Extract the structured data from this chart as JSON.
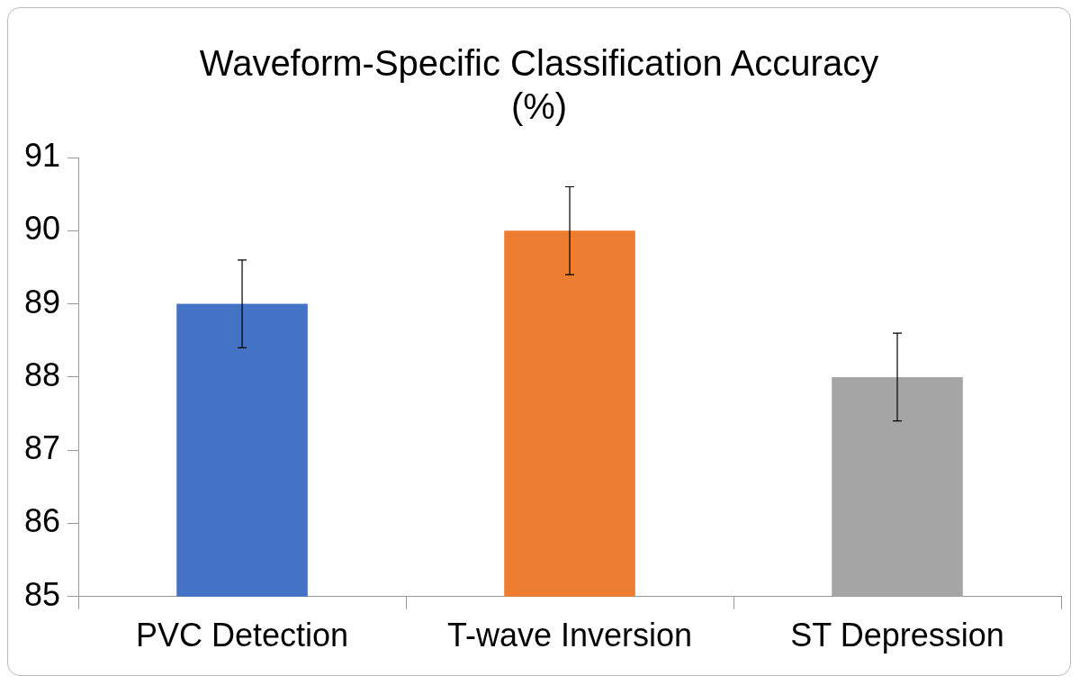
{
  "chart_data": {
    "type": "bar",
    "title": [
      "Waveform-Specific Classification Accuracy",
      "(%)"
    ],
    "categories": [
      "PVC Detection",
      "T-wave Inversion",
      "ST Depression"
    ],
    "values": [
      89,
      90,
      88
    ],
    "colors": [
      "#4472c4",
      "#ed7d31",
      "#a5a5a5"
    ],
    "errors": [
      0.6,
      0.6,
      0.6
    ],
    "ylim": [
      85,
      91
    ],
    "yticks": [
      85,
      86,
      87,
      88,
      89,
      90,
      91
    ],
    "grid": false,
    "legend": false
  }
}
